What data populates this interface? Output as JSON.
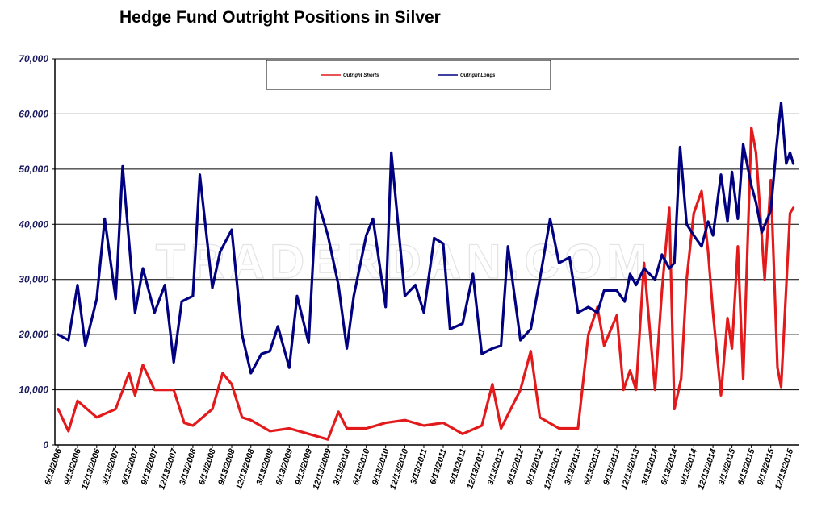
{
  "chart_data": {
    "type": "line",
    "title": "Hedge Fund Outright Positions in Silver",
    "watermark": "TRADERDAN.COM",
    "ylim": [
      0,
      70000
    ],
    "y_ticks": [
      "0",
      "10,000",
      "20,000",
      "30,000",
      "40,000",
      "50,000",
      "60,000",
      "70,000"
    ],
    "x_tick_labels": [
      "6/13/2006",
      "9/13/2006",
      "12/13/2006",
      "3/13/2007",
      "6/13/2007",
      "9/13/2007",
      "12/13/2007",
      "3/13/2008",
      "6/13/2008",
      "9/13/2008",
      "12/13/2008",
      "3/13/2009",
      "6/13/2009",
      "9/13/2009",
      "12/13/2009",
      "3/13/2010",
      "6/13/2010",
      "9/13/2010",
      "12/13/2010",
      "3/13/2011",
      "6/13/2011",
      "9/13/2011",
      "12/13/2011",
      "3/13/2012",
      "6/13/2012",
      "9/13/2012",
      "12/13/2012",
      "3/13/2013",
      "6/13/2013",
      "9/13/2013",
      "12/13/2013",
      "3/13/2014",
      "6/13/2014",
      "9/13/2014",
      "12/13/2014",
      "3/13/2015",
      "6/13/2015",
      "9/13/2015",
      "12/13/2015"
    ],
    "grid": "horizontal",
    "legend_position": "top",
    "series": [
      {
        "name": "Outright Shorts",
        "color": "#e31a1c",
        "x": [
          "6/13/2006",
          "8/1/2006",
          "9/13/2006",
          "12/13/2006",
          "3/13/2007",
          "5/15/2007",
          "6/13/2007",
          "7/20/2007",
          "9/13/2007",
          "12/13/2007",
          "2/1/2008",
          "3/13/2008",
          "6/13/2008",
          "8/1/2008",
          "9/13/2008",
          "11/1/2008",
          "12/13/2008",
          "3/13/2009",
          "6/13/2009",
          "9/13/2009",
          "12/13/2009",
          "2/1/2010",
          "3/13/2010",
          "6/13/2010",
          "9/13/2010",
          "12/13/2010",
          "3/13/2011",
          "6/13/2011",
          "9/13/2011",
          "12/13/2011",
          "2/1/2012",
          "3/13/2012",
          "6/13/2012",
          "8/1/2012",
          "9/13/2012",
          "12/13/2012",
          "3/13/2013",
          "5/1/2013",
          "6/13/2013",
          "7/15/2013",
          "9/13/2013",
          "10/15/2013",
          "11/15/2013",
          "12/13/2013",
          "1/20/2014",
          "3/13/2014",
          "4/15/2014",
          "5/20/2014",
          "6/13/2014",
          "7/15/2014",
          "8/10/2014",
          "9/13/2014",
          "10/20/2014",
          "11/20/2014",
          "12/13/2014",
          "1/20/2015",
          "2/20/2015",
          "3/13/2015",
          "4/10/2015",
          "5/5/2015",
          "6/13/2015",
          "7/5/2015",
          "7/25/2015",
          "8/15/2015",
          "9/13/2015",
          "10/15/2015",
          "11/1/2015",
          "12/13/2015",
          "12/29/2015"
        ],
        "values": [
          6500,
          2500,
          8000,
          5000,
          6500,
          13000,
          9000,
          14500,
          10000,
          10000,
          4000,
          3500,
          6500,
          13000,
          11000,
          5000,
          4500,
          2500,
          3000,
          2000,
          1000,
          6000,
          3000,
          3000,
          4000,
          4500,
          3500,
          4000,
          2000,
          3500,
          11000,
          3000,
          10000,
          17000,
          5000,
          3000,
          3000,
          20000,
          25000,
          18000,
          23500,
          10000,
          13500,
          10000,
          33000,
          10000,
          28000,
          43000,
          6500,
          12000,
          30000,
          42000,
          46000,
          35000,
          24000,
          9000,
          23000,
          17500,
          36000,
          12000,
          57500,
          53000,
          42000,
          30000,
          48000,
          14000,
          10500,
          42000,
          43000
        ]
      },
      {
        "name": "Outright Longs",
        "color": "#000080",
        "x": [
          "6/13/2006",
          "8/1/2006",
          "9/13/2006",
          "10/20/2006",
          "12/13/2006",
          "1/20/2007",
          "3/13/2007",
          "4/15/2007",
          "6/13/2007",
          "7/20/2007",
          "9/13/2007",
          "11/1/2007",
          "12/13/2007",
          "1/20/2008",
          "3/13/2008",
          "4/15/2008",
          "6/13/2008",
          "7/20/2008",
          "9/13/2008",
          "11/1/2008",
          "12/13/2008",
          "2/1/2009",
          "3/13/2009",
          "4/20/2009",
          "6/13/2009",
          "7/20/2009",
          "9/13/2009",
          "10/20/2009",
          "12/13/2009",
          "2/1/2010",
          "3/13/2010",
          "4/15/2010",
          "6/13/2010",
          "7/15/2010",
          "9/13/2010",
          "10/10/2010",
          "12/13/2010",
          "2/1/2011",
          "3/13/2011",
          "5/1/2011",
          "6/13/2011",
          "7/15/2011",
          "9/13/2011",
          "11/1/2011",
          "12/13/2011",
          "2/1/2012",
          "3/13/2012",
          "4/15/2012",
          "6/13/2012",
          "8/1/2012",
          "9/13/2012",
          "11/1/2012",
          "12/13/2012",
          "2/1/2013",
          "3/13/2013",
          "5/1/2013",
          "6/13/2013",
          "7/15/2013",
          "9/13/2013",
          "10/20/2013",
          "11/15/2013",
          "12/13/2013",
          "1/20/2014",
          "3/13/2014",
          "4/15/2014",
          "5/20/2014",
          "6/13/2014",
          "7/10/2014",
          "8/10/2014",
          "9/13/2014",
          "10/20/2014",
          "11/20/2014",
          "12/13/2014",
          "1/20/2015",
          "2/20/2015",
          "3/13/2015",
          "4/10/2015",
          "5/5/2015",
          "6/13/2015",
          "7/5/2015",
          "8/1/2015",
          "9/13/2015",
          "10/10/2015",
          "11/1/2015",
          "11/25/2015",
          "12/13/2015",
          "12/29/2015"
        ],
        "values": [
          20000,
          19000,
          29000,
          18000,
          26500,
          41000,
          26500,
          50500,
          24000,
          32000,
          24000,
          29000,
          15000,
          26000,
          27000,
          49000,
          28500,
          35000,
          39000,
          20000,
          13000,
          16500,
          17000,
          21500,
          14000,
          27000,
          18500,
          45000,
          38000,
          29000,
          17500,
          27000,
          38000,
          41000,
          25000,
          53000,
          27000,
          29000,
          24000,
          37500,
          36500,
          21000,
          22000,
          31000,
          16500,
          17500,
          18000,
          36000,
          19000,
          21000,
          30000,
          41000,
          33000,
          34000,
          24000,
          25000,
          24000,
          28000,
          28000,
          26000,
          31000,
          29000,
          32000,
          30000,
          34500,
          32000,
          33000,
          54000,
          40000,
          38000,
          36000,
          40500,
          38000,
          49000,
          40500,
          49500,
          41000,
          54500,
          47000,
          44000,
          38500,
          42500,
          54000,
          62000,
          51000,
          53000,
          51000
        ]
      }
    ]
  }
}
